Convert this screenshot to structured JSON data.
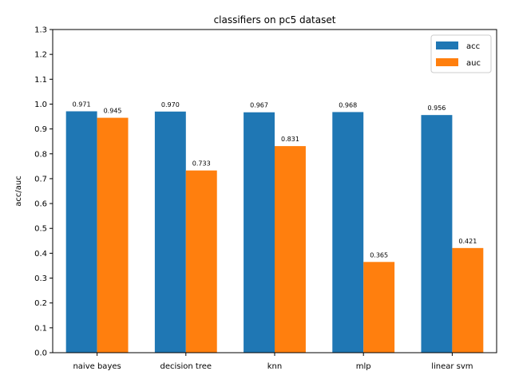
{
  "chart_data": {
    "type": "bar",
    "title": "classifiers on pc5 dataset",
    "xlabel": "",
    "ylabel": "acc/auc",
    "categories": [
      "naive bayes",
      "decision tree",
      "knn",
      "mlp",
      "linear svm"
    ],
    "series": [
      {
        "name": "acc",
        "color": "#1f77b4",
        "values": [
          0.971,
          0.97,
          0.967,
          0.968,
          0.956
        ],
        "labels": [
          "0.971",
          "0.970",
          "0.967",
          "0.968",
          "0.956"
        ]
      },
      {
        "name": "auc",
        "color": "#ff7f0e",
        "values": [
          0.945,
          0.733,
          0.831,
          0.365,
          0.421
        ],
        "labels": [
          "0.945",
          "0.733",
          "0.831",
          "0.365",
          "0.421"
        ]
      }
    ],
    "ylim": [
      0,
      1.3
    ],
    "yticks": [
      "0.0",
      "0.1",
      "0.2",
      "0.3",
      "0.4",
      "0.5",
      "0.6",
      "0.7",
      "0.8",
      "0.9",
      "1.0",
      "1.1",
      "1.2",
      "1.3"
    ],
    "grid": false,
    "legend_position": "top-right"
  }
}
